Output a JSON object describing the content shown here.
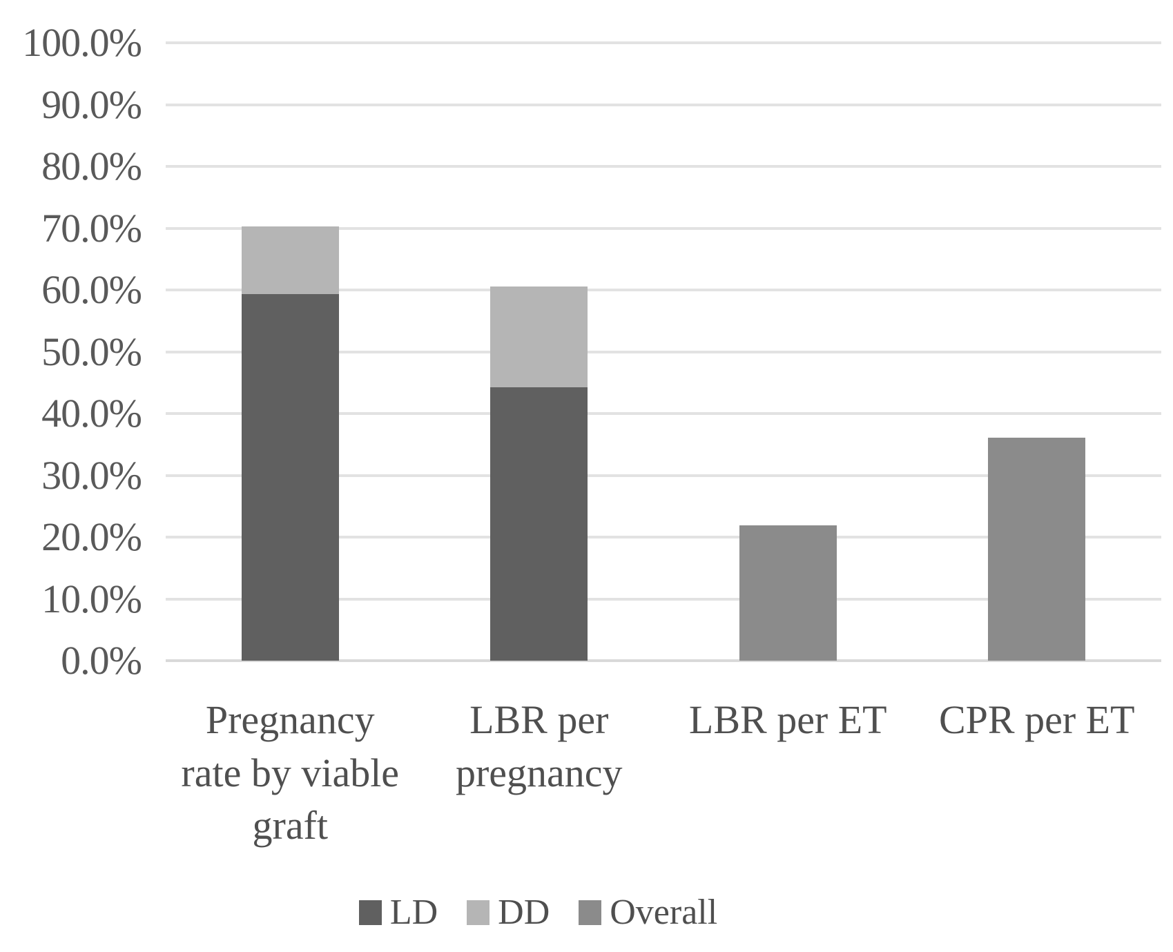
{
  "chart_data": {
    "type": "bar",
    "subtype": "stacked-and-single-column",
    "title": "",
    "xlabel": "",
    "ylabel": "",
    "categories": [
      "Pregnancy rate by viable graft",
      "LBR per pregnancy",
      "LBR per ET",
      "CPR per ET"
    ],
    "category_labels_multiline": [
      "Pregnancy\nrate by viable\ngraft",
      "LBR per\npregnancy",
      "LBR per ET",
      "CPR per ET"
    ],
    "series": [
      {
        "name": "LD",
        "color": "#606060",
        "values": [
          59.3,
          44.2,
          null,
          null
        ]
      },
      {
        "name": "DD",
        "color": "#b5b5b5",
        "values": [
          11.0,
          16.4,
          null,
          null
        ]
      },
      {
        "name": "Overall",
        "color": "#8b8b8b",
        "values": [
          null,
          null,
          21.9,
          36.1
        ]
      }
    ],
    "stacked_totals_pct": [
      70.3,
      60.6,
      21.9,
      36.1
    ],
    "ylim": [
      0,
      100
    ],
    "ytick_step_pct": 10,
    "yticks": [
      "100.0%",
      "90.0%",
      "80.0%",
      "70.0%",
      "60.0%",
      "50.0%",
      "40.0%",
      "30.0%",
      "20.0%",
      "10.0%",
      "0.0%"
    ],
    "grid": true,
    "legend_position": "bottom",
    "legend": [
      {
        "label": "LD",
        "color": "#606060"
      },
      {
        "label": "DD",
        "color": "#b5b5b5"
      },
      {
        "label": "Overall",
        "color": "#8b8b8b"
      }
    ]
  },
  "colors": {
    "background": "#ffffff",
    "gridline": "#e2e2e2",
    "baseline": "#d9d9d9",
    "axis_text": "#595959",
    "category_text": "#4f4f4f",
    "legend_text": "#4f4f4f"
  }
}
